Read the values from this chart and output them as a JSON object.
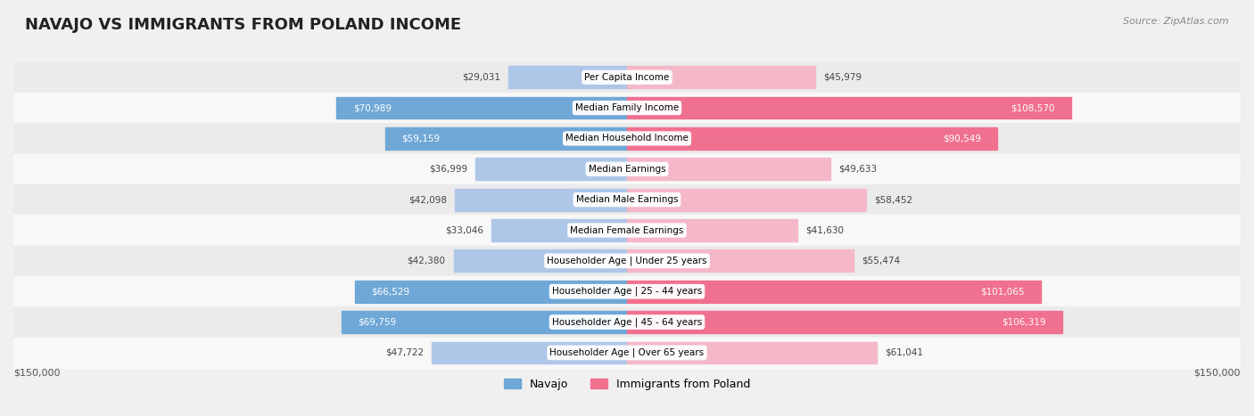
{
  "title": "NAVAJO VS IMMIGRANTS FROM POLAND INCOME",
  "source": "Source: ZipAtlas.com",
  "categories": [
    "Per Capita Income",
    "Median Family Income",
    "Median Household Income",
    "Median Earnings",
    "Median Male Earnings",
    "Median Female Earnings",
    "Householder Age | Under 25 years",
    "Householder Age | 25 - 44 years",
    "Householder Age | 45 - 64 years",
    "Householder Age | Over 65 years"
  ],
  "navajo_values": [
    29031,
    70989,
    59159,
    36999,
    42098,
    33046,
    42380,
    66529,
    69759,
    47722
  ],
  "poland_values": [
    45979,
    108570,
    90549,
    49633,
    58452,
    41630,
    55474,
    101065,
    106319,
    61041
  ],
  "navajo_labels": [
    "$29,031",
    "$70,989",
    "$59,159",
    "$36,999",
    "$42,098",
    "$33,046",
    "$42,380",
    "$66,529",
    "$69,759",
    "$47,722"
  ],
  "poland_labels": [
    "$45,979",
    "$108,570",
    "$90,549",
    "$49,633",
    "$58,452",
    "$41,630",
    "$55,474",
    "$101,065",
    "$106,319",
    "$61,041"
  ],
  "navajo_color_light": "#aec6e8",
  "navajo_color_dark": "#6fa8d6",
  "poland_color_light": "#f4b8c8",
  "poland_color_dark": "#f07090",
  "max_value": 150000,
  "legend_navajo": "Navajo",
  "legend_poland": "Immigrants from Poland",
  "xlabel_left": "$150,000",
  "xlabel_right": "$150,000",
  "row_colors": [
    "#ebebeb",
    "#f8f8f8"
  ]
}
